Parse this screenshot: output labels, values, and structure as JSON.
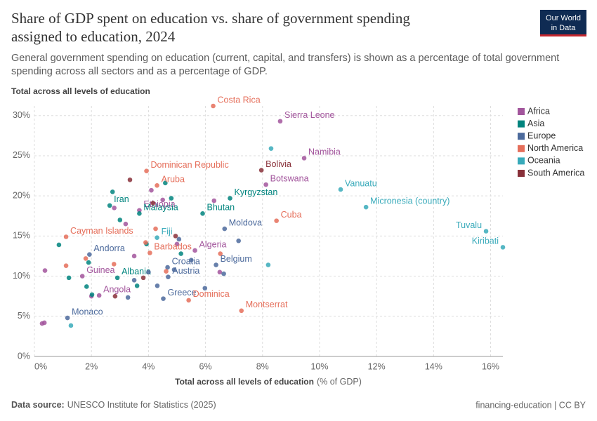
{
  "chart_data": {
    "type": "scatter",
    "title": [
      "Share of GDP spent on education vs. share of government spending",
      "assigned to education, 2024"
    ],
    "subtitle": [
      "General government spending on education (current, capital, and transfers) is shown as a percentage of total government",
      "spending across all sectors and as a percentage of GDP."
    ],
    "y_label": "Total across all levels of education",
    "x_label": "Total across all levels of education",
    "x_unit": "(% of GDP)",
    "xlim": [
      0,
      16.43
    ],
    "ylim": [
      0,
      31.2
    ],
    "xticks": [
      {
        "value": 0,
        "label": "0%"
      },
      {
        "value": 2,
        "label": "2%"
      },
      {
        "value": 4,
        "label": "4%"
      },
      {
        "value": 6,
        "label": "6%"
      },
      {
        "value": 8,
        "label": "8%"
      },
      {
        "value": 10,
        "label": "10%"
      },
      {
        "value": 12,
        "label": "12%"
      },
      {
        "value": 14,
        "label": "14%"
      },
      {
        "value": 16,
        "label": "16%"
      }
    ],
    "yticks": [
      {
        "value": 0,
        "label": "0%"
      },
      {
        "value": 5,
        "label": "5%"
      },
      {
        "value": 10,
        "label": "10%"
      },
      {
        "value": 15,
        "label": "15%"
      },
      {
        "value": 20,
        "label": "20%"
      },
      {
        "value": 25,
        "label": "25%"
      },
      {
        "value": 30,
        "label": "30%"
      }
    ],
    "grid": true,
    "legend": "right",
    "series": [
      {
        "name": "Africa",
        "color": "#a2559c",
        "x": [
          8.62,
          9.46,
          8.12,
          3.68,
          5.63,
          1.68,
          2.27,
          0.37,
          0.27,
          0.35,
          4.1,
          4.5,
          2.8,
          3.2,
          6.5,
          5.0,
          2.0,
          3.5,
          6.3
        ],
        "values": [
          29.3,
          24.7,
          21.4,
          18.2,
          13.2,
          10.0,
          7.6,
          10.7,
          4.1,
          4.2,
          20.7,
          19.5,
          18.5,
          16.5,
          10.5,
          14.0,
          7.5,
          12.5,
          19.4
        ],
        "labels": [
          "Sierra Leone",
          "Namibia",
          "Botswana",
          "Ethiopia",
          "Algeria",
          "Guinea",
          "Angola",
          null,
          null,
          null,
          null,
          null,
          null,
          null,
          null,
          null,
          null,
          null,
          null
        ]
      },
      {
        "name": "Asia",
        "color": "#00847e",
        "x": [
          2.64,
          3.68,
          6.86,
          5.9,
          2.91,
          2.74,
          4.59,
          0.86,
          1.21,
          1.83,
          2.02,
          3.93,
          5.14,
          3.0,
          4.8,
          1.9,
          3.6
        ],
        "values": [
          18.8,
          17.8,
          19.7,
          17.8,
          9.8,
          20.5,
          21.6,
          13.9,
          9.8,
          8.7,
          7.7,
          14.0,
          12.8,
          17.0,
          19.7,
          11.7,
          8.8
        ],
        "labels": [
          "Iran",
          "Malaysia",
          "Kyrgyzstan",
          "Bhutan",
          "Albania",
          null,
          null,
          null,
          null,
          null,
          null,
          null,
          null,
          null,
          null,
          null,
          null
        ]
      },
      {
        "name": "Europe",
        "color": "#4c6a9c",
        "x": [
          1.93,
          6.67,
          4.67,
          6.37,
          4.69,
          4.52,
          1.16,
          5.98,
          7.16,
          5.07,
          4.31,
          3.28,
          6.64,
          4.9,
          3.5,
          5.5,
          4.0
        ],
        "values": [
          12.7,
          15.9,
          11.1,
          11.4,
          9.9,
          7.2,
          4.8,
          8.5,
          14.4,
          14.6,
          8.8,
          7.35,
          10.3,
          10.8,
          9.5,
          12.0,
          10.5
        ],
        "labels": [
          "Andorra",
          "Moldova",
          "Croatia",
          "Belgium",
          "Austria",
          "Greece",
          "Monaco",
          null,
          null,
          null,
          null,
          null,
          null,
          null,
          null,
          null,
          null
        ]
      },
      {
        "name": "North America",
        "color": "#e56e5a",
        "x": [
          6.27,
          3.93,
          4.3,
          8.49,
          1.11,
          4.05,
          5.41,
          7.26,
          1.11,
          2.79,
          4.62,
          6.52,
          4.25,
          1.8,
          3.9
        ],
        "values": [
          31.2,
          23.1,
          21.3,
          16.9,
          14.9,
          12.9,
          7.0,
          5.7,
          11.3,
          11.5,
          10.6,
          12.8,
          15.9,
          12.2,
          14.2
        ],
        "labels": [
          "Costa Rica",
          "Dominican Republic",
          "Aruba",
          "Cuba",
          "Cayman Islands",
          "Barbados",
          "Dominica",
          "Montserrat",
          null,
          null,
          null,
          null,
          null,
          null,
          null
        ]
      },
      {
        "name": "Oceania",
        "color": "#38aaba",
        "x": [
          10.74,
          11.63,
          15.84,
          16.43,
          8.3,
          8.2,
          1.28,
          4.3
        ],
        "values": [
          20.8,
          18.6,
          15.6,
          13.6,
          25.9,
          11.4,
          3.85,
          14.8
        ],
        "labels": [
          "Vanuatu",
          "Micronesia (country)",
          "Tuvalu",
          "Kiribati",
          null,
          null,
          null,
          "Fiji"
        ]
      },
      {
        "name": "South America",
        "color": "#883039",
        "x": [
          7.96,
          3.35,
          4.16,
          2.83,
          3.82,
          4.95
        ],
        "values": [
          23.2,
          22.0,
          19.1,
          7.5,
          9.8,
          15.0
        ],
        "labels": [
          "Bolivia",
          null,
          null,
          null,
          null,
          null
        ]
      }
    ]
  },
  "logo": [
    "Our World",
    "in Data"
  ],
  "footer": {
    "source_label": "Data source:",
    "source": "UNESCO Institute for Statistics (2025)",
    "license": "financing-education | CC BY"
  }
}
